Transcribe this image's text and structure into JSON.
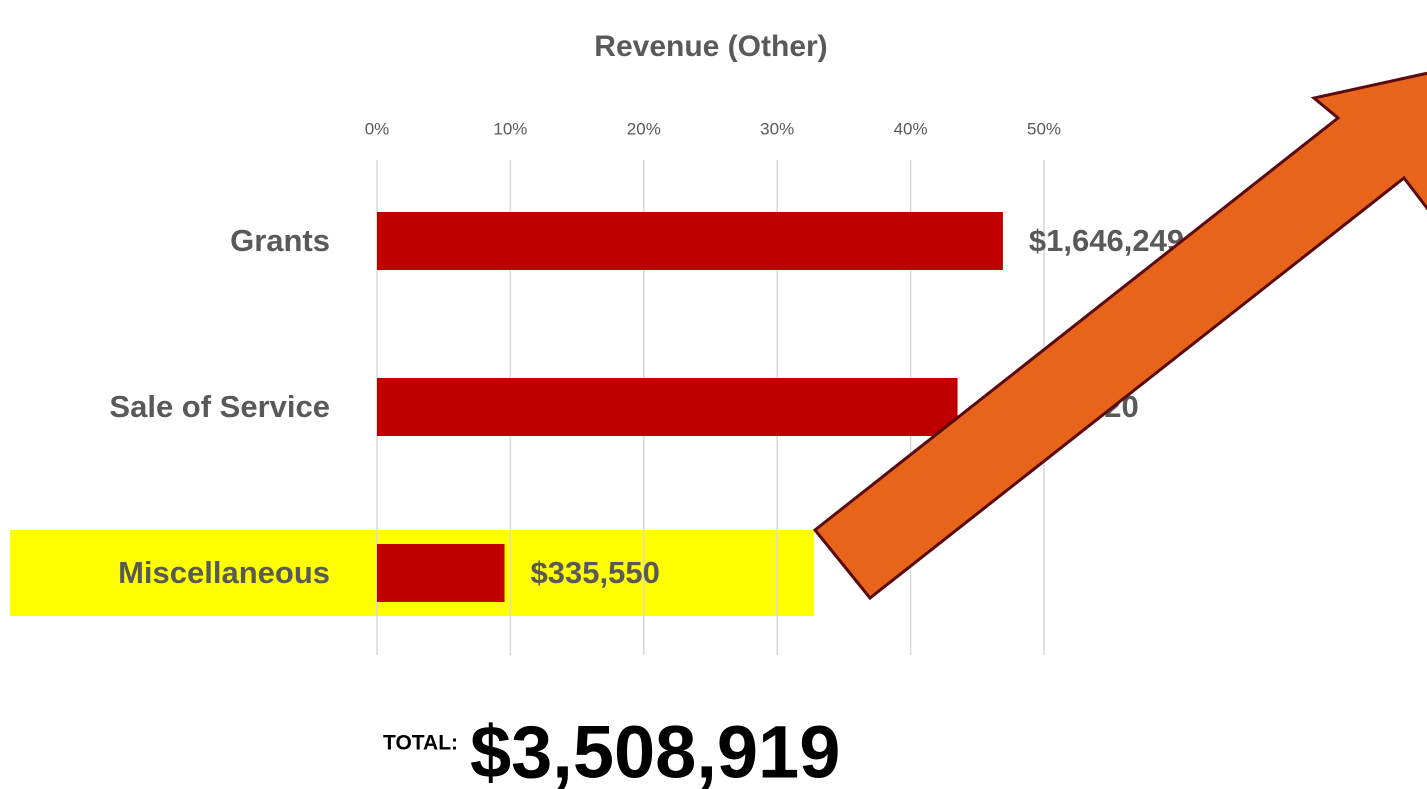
{
  "chart_data": {
    "type": "bar",
    "orientation": "horizontal",
    "title": "Revenue (Other)",
    "categories": [
      "Grants",
      "Sale of Service",
      "Miscellaneous"
    ],
    "values": [
      46.92,
      43.52,
      9.56
    ],
    "value_labels": [
      "$1,646,249",
      "$1,527,120",
      "$335,550"
    ],
    "color": "#c00000",
    "xlim": [
      0,
      50
    ],
    "xticks": [
      {
        "value": 0,
        "label": "0%"
      },
      {
        "value": 10,
        "label": "10%"
      },
      {
        "value": 20,
        "label": "20%"
      },
      {
        "value": 30,
        "label": "30%"
      },
      {
        "value": 40,
        "label": "40%"
      },
      {
        "value": 50,
        "label": "50%"
      }
    ],
    "grid": true,
    "total_label": "TOTAL:",
    "total_value": "$3,508,919"
  }
}
